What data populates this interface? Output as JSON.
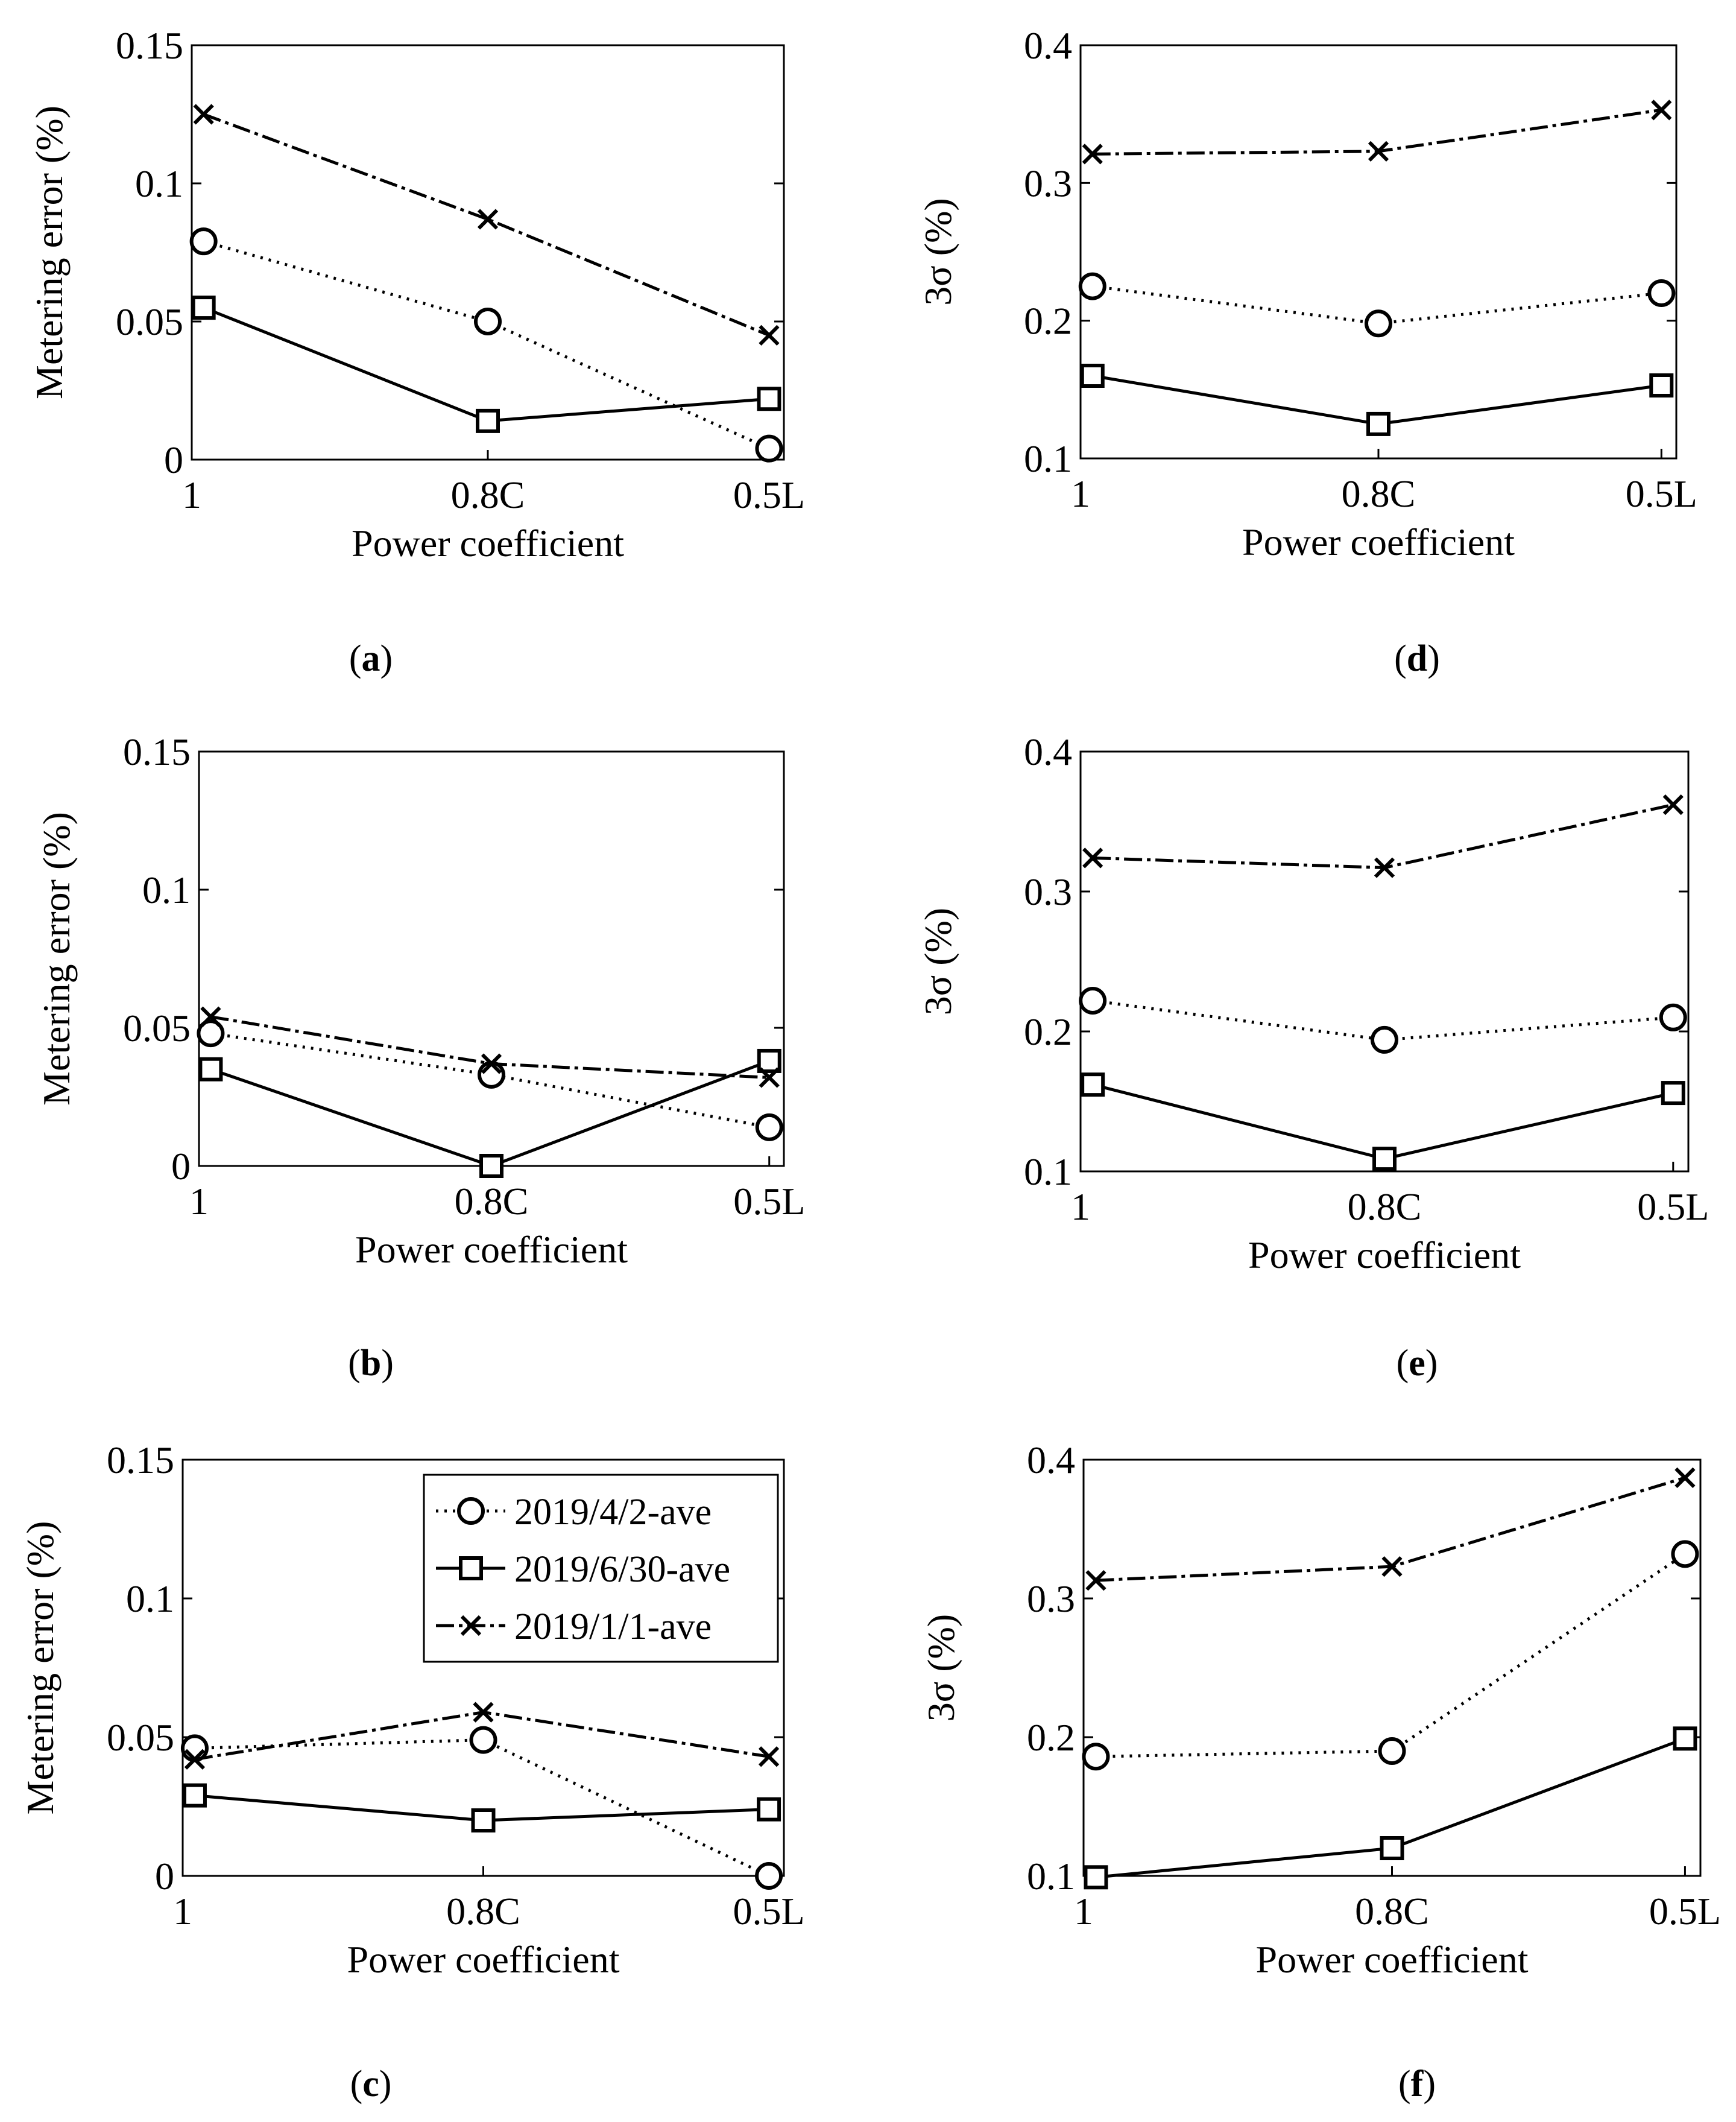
{
  "chart_data": [
    {
      "panel": "a",
      "panel_label": "a",
      "type": "line",
      "categories": [
        "1",
        "0.8C",
        "0.5L"
      ],
      "xlabel": "Power coefficient",
      "ylabel": "Metering error (%)",
      "ylabel_text": "Metering error (%)",
      "ylim": [
        0,
        0.15
      ],
      "yticks": [
        "0",
        "0.05",
        "0.1",
        "0.15"
      ],
      "series": [
        {
          "name": "2019/4/2-ave",
          "marker": "circle",
          "style": "dotted",
          "values": [
            0.079,
            0.05,
            0.004
          ]
        },
        {
          "name": "2019/6/30-ave",
          "marker": "square",
          "style": "solid",
          "values": [
            0.055,
            0.014,
            0.022
          ]
        },
        {
          "name": "2019/1/1-ave",
          "marker": "x",
          "style": "dashed",
          "values": [
            0.125,
            0.087,
            0.045
          ]
        }
      ]
    },
    {
      "panel": "b",
      "panel_label": "b",
      "type": "line",
      "categories": [
        "1",
        "0.8C",
        "0.5L"
      ],
      "xlabel": "Power coefficient",
      "ylabel": "Metering error (%)",
      "ylabel_text": "Metering error (%)",
      "ylim": [
        0,
        0.15
      ],
      "yticks": [
        "0",
        "0.05",
        "0.1",
        "0.15"
      ],
      "series": [
        {
          "name": "2019/4/2-ave",
          "marker": "circle",
          "style": "dotted",
          "values": [
            0.048,
            0.033,
            0.014
          ]
        },
        {
          "name": "2019/6/30-ave",
          "marker": "square",
          "style": "solid",
          "values": [
            0.035,
            0.0,
            0.038
          ]
        },
        {
          "name": "2019/1/1-ave",
          "marker": "x",
          "style": "dashed",
          "values": [
            0.054,
            0.037,
            0.032
          ]
        }
      ]
    },
    {
      "panel": "c",
      "panel_label": "c",
      "type": "line",
      "categories": [
        "1",
        "0.8C",
        "0.5L"
      ],
      "xlabel": "Power coefficient",
      "ylabel": "Metering error (%)",
      "ylabel_text": "Metering error (%)",
      "ylim": [
        0,
        0.15
      ],
      "yticks": [
        "0",
        "0.05",
        "0.1",
        "0.15"
      ],
      "legend": {
        "position": "top-right"
      },
      "series": [
        {
          "name": "2019/4/2-ave",
          "marker": "circle",
          "style": "dotted",
          "values": [
            0.046,
            0.049,
            0.0
          ]
        },
        {
          "name": "2019/6/30-ave",
          "marker": "square",
          "style": "solid",
          "values": [
            0.029,
            0.02,
            0.024
          ]
        },
        {
          "name": "2019/1/1-ave",
          "marker": "x",
          "style": "dashed",
          "values": [
            0.042,
            0.059,
            0.043
          ]
        }
      ]
    },
    {
      "panel": "d",
      "panel_label": "d",
      "type": "line",
      "categories": [
        "1",
        "0.8C",
        "0.5L"
      ],
      "xlabel": "Power coefficient",
      "ylabel": "3σ (%)",
      "ylabel_text": "3σ (%)",
      "ylim": [
        0.1,
        0.4
      ],
      "yticks": [
        "0.1",
        "0.2",
        "0.3",
        "0.4"
      ],
      "series": [
        {
          "name": "2019/4/2-ave",
          "marker": "circle",
          "style": "dotted",
          "values": [
            0.225,
            0.198,
            0.22
          ]
        },
        {
          "name": "2019/6/30-ave",
          "marker": "square",
          "style": "solid",
          "values": [
            0.16,
            0.125,
            0.153
          ]
        },
        {
          "name": "2019/1/1-ave",
          "marker": "x",
          "style": "dashed",
          "values": [
            0.321,
            0.323,
            0.353
          ]
        }
      ]
    },
    {
      "panel": "e",
      "panel_label": "e",
      "type": "line",
      "categories": [
        "1",
        "0.8C",
        "0.5L"
      ],
      "xlabel": "Power coefficient",
      "ylabel": "3σ (%)",
      "ylabel_text": "3σ (%)",
      "ylim": [
        0.1,
        0.4
      ],
      "yticks": [
        "0.1",
        "0.2",
        "0.3",
        "0.4"
      ],
      "series": [
        {
          "name": "2019/4/2-ave",
          "marker": "circle",
          "style": "dotted",
          "values": [
            0.222,
            0.194,
            0.21
          ]
        },
        {
          "name": "2019/6/30-ave",
          "marker": "square",
          "style": "solid",
          "values": [
            0.162,
            0.109,
            0.156
          ]
        },
        {
          "name": "2019/1/1-ave",
          "marker": "x",
          "style": "dashed",
          "values": [
            0.324,
            0.317,
            0.362
          ]
        }
      ]
    },
    {
      "panel": "f",
      "panel_label": "f",
      "type": "line",
      "categories": [
        "1",
        "0.8C",
        "0.5L"
      ],
      "xlabel": "Power coefficient",
      "ylabel": "3σ (%)",
      "ylabel_text": "3σ (%)",
      "ylim": [
        0.1,
        0.4
      ],
      "yticks": [
        "0.1",
        "0.2",
        "0.3",
        "0.4"
      ],
      "series": [
        {
          "name": "2019/4/2-ave",
          "marker": "circle",
          "style": "dotted",
          "values": [
            0.186,
            0.19,
            0.332
          ]
        },
        {
          "name": "2019/6/30-ave",
          "marker": "square",
          "style": "solid",
          "values": [
            0.099,
            0.12,
            0.199
          ]
        },
        {
          "name": "2019/1/1-ave",
          "marker": "x",
          "style": "dashed",
          "values": [
            0.313,
            0.323,
            0.387
          ]
        }
      ]
    }
  ]
}
